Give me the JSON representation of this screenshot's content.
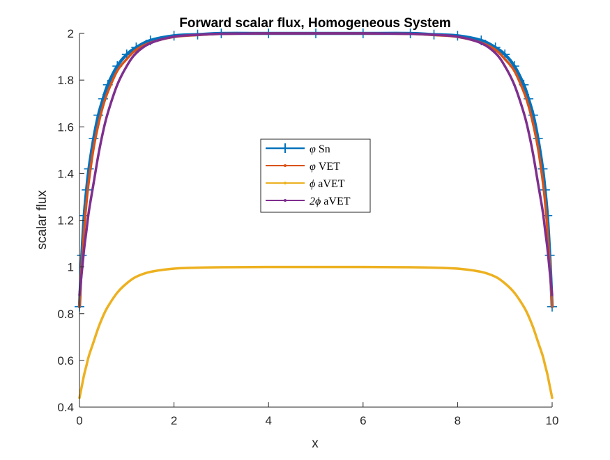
{
  "chart_data": {
    "type": "line",
    "title": "Forward scalar flux, Homogeneous System",
    "xlabel": "x",
    "ylabel": "scalar flux",
    "xlim": [
      0,
      10
    ],
    "ylim": [
      0.4,
      2
    ],
    "xticks": [
      0,
      2,
      4,
      6,
      8,
      10
    ],
    "xtick_labels": [
      "0",
      "2",
      "4",
      "6",
      "8",
      "10"
    ],
    "yticks": [
      0.4,
      0.6,
      0.8,
      1.0,
      1.2,
      1.4,
      1.6,
      1.8,
      2.0
    ],
    "ytick_labels": [
      "0.4",
      "0.6",
      "0.8",
      "1",
      "1.2",
      "1.4",
      "1.6",
      "1.8",
      "2"
    ],
    "grid": false,
    "legend_position": "center",
    "x": [
      0,
      0.05,
      0.1,
      0.15,
      0.2,
      0.3,
      0.4,
      0.5,
      0.6,
      0.8,
      1.0,
      1.2,
      1.5,
      2.0,
      2.5,
      3.0,
      4.0,
      5.0,
      6.0,
      7.0,
      7.5,
      8.0,
      8.5,
      8.8,
      9.0,
      9.2,
      9.4,
      9.5,
      9.6,
      9.7,
      9.8,
      9.85,
      9.9,
      9.95,
      10
    ],
    "series": [
      {
        "name": "φ Sn",
        "label_symbol": "φ",
        "label_text": "Sn",
        "color": "#0072BD",
        "marker": "plus",
        "values": [
          0.83,
          1.05,
          1.22,
          1.33,
          1.42,
          1.55,
          1.65,
          1.72,
          1.78,
          1.86,
          1.91,
          1.94,
          1.97,
          1.99,
          1.995,
          2.0,
          2.0,
          2.0,
          2.0,
          2.0,
          1.995,
          1.99,
          1.97,
          1.94,
          1.91,
          1.86,
          1.78,
          1.72,
          1.65,
          1.55,
          1.42,
          1.33,
          1.22,
          1.05,
          0.83
        ]
      },
      {
        "name": "φ VET",
        "label_symbol": "φ",
        "label_text": "VET",
        "color": "#D95319",
        "marker": "dot",
        "values": [
          0.83,
          1.01,
          1.16,
          1.28,
          1.37,
          1.51,
          1.61,
          1.69,
          1.75,
          1.84,
          1.89,
          1.93,
          1.96,
          1.985,
          1.993,
          1.998,
          2.0,
          2.0,
          2.0,
          1.998,
          1.993,
          1.985,
          1.96,
          1.93,
          1.89,
          1.84,
          1.75,
          1.69,
          1.61,
          1.51,
          1.37,
          1.28,
          1.16,
          1.01,
          0.83
        ]
      },
      {
        "name": "ϕ aVET",
        "label_symbol": "ϕ",
        "label_text": "aVET",
        "color": "#EDB120",
        "marker": "dot",
        "values": [
          0.44,
          0.49,
          0.54,
          0.58,
          0.62,
          0.68,
          0.74,
          0.79,
          0.83,
          0.89,
          0.93,
          0.958,
          0.979,
          0.993,
          0.997,
          0.999,
          1.0,
          1.0,
          1.0,
          0.999,
          0.997,
          0.993,
          0.979,
          0.958,
          0.93,
          0.89,
          0.83,
          0.79,
          0.74,
          0.68,
          0.62,
          0.58,
          0.54,
          0.49,
          0.44
        ]
      },
      {
        "name": "2ϕ aVET",
        "label_symbol": "2ϕ",
        "label_text": "aVET",
        "color": "#7E2F8E",
        "marker": "dot",
        "values": [
          0.88,
          0.98,
          1.08,
          1.16,
          1.24,
          1.36,
          1.48,
          1.58,
          1.66,
          1.78,
          1.86,
          1.916,
          1.958,
          1.986,
          1.994,
          1.998,
          2.0,
          2.0,
          2.0,
          1.998,
          1.994,
          1.986,
          1.958,
          1.916,
          1.86,
          1.78,
          1.66,
          1.58,
          1.48,
          1.36,
          1.24,
          1.16,
          1.08,
          0.98,
          0.88
        ]
      }
    ]
  }
}
